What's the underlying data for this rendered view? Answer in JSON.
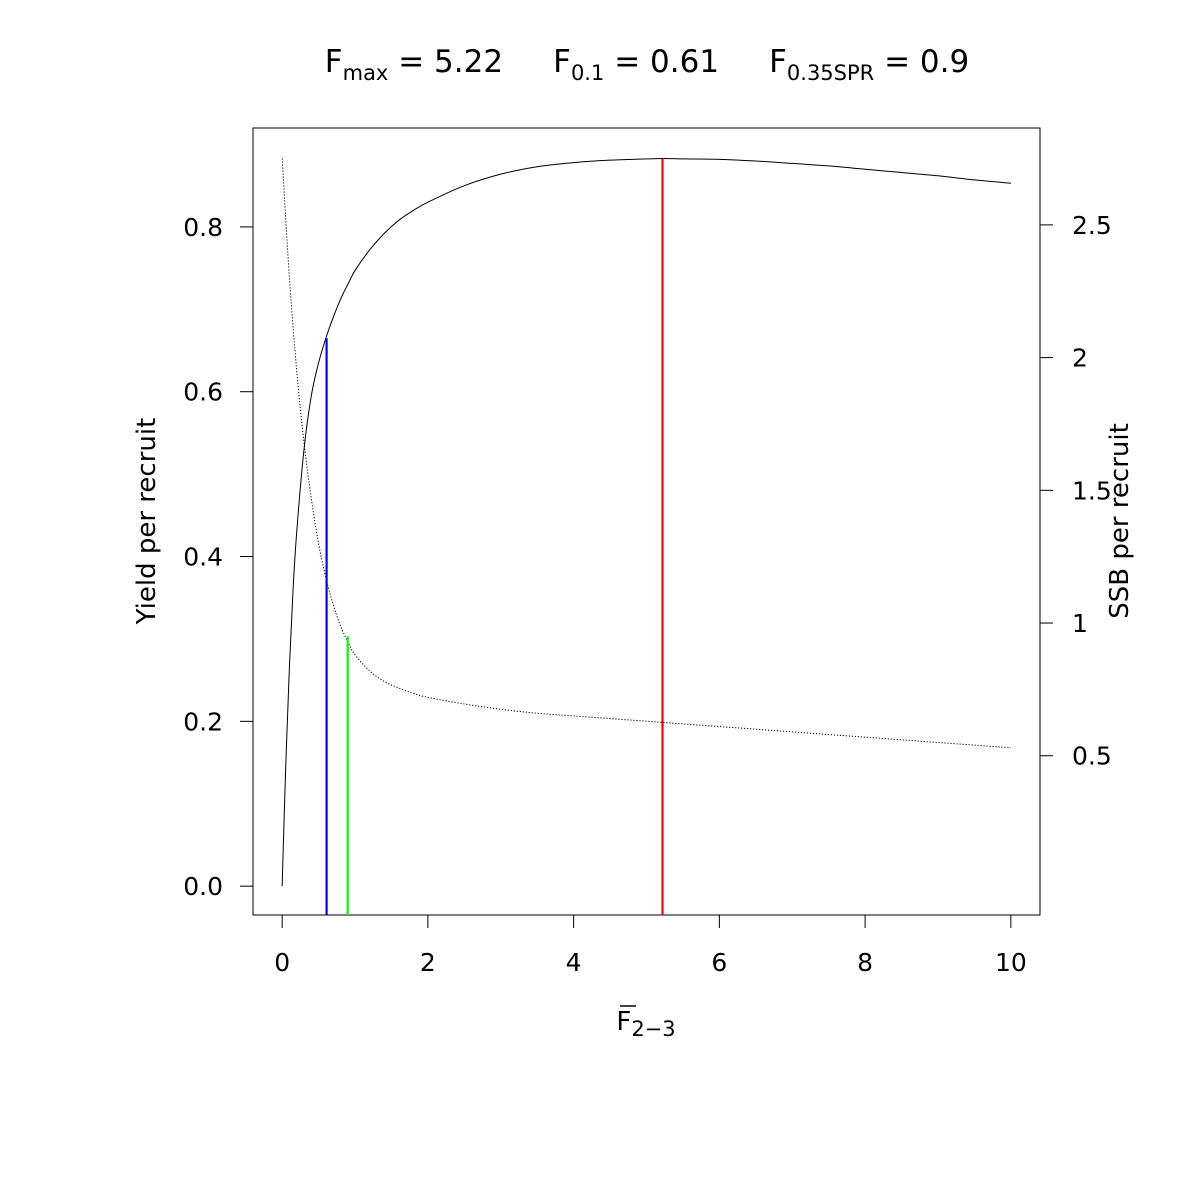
{
  "chart_data": {
    "type": "line",
    "title": {
      "fmax": {
        "symbol": "F",
        "subscript": "max",
        "value_text": " = 5.22"
      },
      "f01": {
        "symbol": "F",
        "subscript": "0.1",
        "value_text": " = 0.61"
      },
      "f035spr": {
        "symbol": "F",
        "subscript": "0.35SPR",
        "value_text": " = 0.9"
      }
    },
    "xlabel": {
      "symbol": "F",
      "subscript": "2−3"
    },
    "ylabel_left": "Yield per recruit",
    "ylabel_right": "SSB per recruit",
    "xlim": [
      -0.4,
      10.4
    ],
    "ylim_left": [
      -0.035,
      0.92
    ],
    "ylim_right": [
      -0.1,
      2.865
    ],
    "x_ticks": [
      0,
      2,
      4,
      6,
      8,
      10
    ],
    "x_tick_labels": [
      "0",
      "2",
      "4",
      "6",
      "8",
      "10"
    ],
    "y_left_ticks": [
      0.0,
      0.2,
      0.4,
      0.6,
      0.8
    ],
    "y_left_tick_labels": [
      "0.0",
      "0.2",
      "0.4",
      "0.6",
      "0.8"
    ],
    "y_right_ticks": [
      0.5,
      1.0,
      1.5,
      2.0,
      2.5
    ],
    "y_right_tick_labels": [
      "0.5",
      "1",
      "1.5",
      "2",
      "2.5"
    ],
    "grid": false,
    "series": [
      {
        "axis": "left",
        "style": "solid",
        "color": "#000000",
        "x": [
          0,
          0.05,
          0.1,
          0.15,
          0.2,
          0.3,
          0.4,
          0.5,
          0.6,
          0.7,
          0.8,
          0.9,
          1.0,
          1.2,
          1.4,
          1.6,
          1.8,
          2.0,
          2.5,
          3.0,
          3.5,
          4.0,
          4.5,
          5.0,
          5.22,
          5.5,
          6.0,
          6.5,
          7.0,
          7.5,
          8.0,
          8.5,
          9.0,
          9.5,
          10.0
        ],
        "y": [
          0.0,
          0.148,
          0.267,
          0.36,
          0.43,
          0.53,
          0.595,
          0.635,
          0.665,
          0.69,
          0.712,
          0.73,
          0.747,
          0.772,
          0.792,
          0.808,
          0.82,
          0.83,
          0.85,
          0.864,
          0.873,
          0.878,
          0.881,
          0.8825,
          0.883,
          0.8825,
          0.882,
          0.88,
          0.877,
          0.874,
          0.87,
          0.866,
          0.862,
          0.857,
          0.853
        ]
      },
      {
        "axis": "right",
        "style": "dotted",
        "color": "#000000",
        "x": [
          0,
          0.1,
          0.2,
          0.3,
          0.4,
          0.5,
          0.6,
          0.7,
          0.8,
          0.9,
          1.0,
          1.2,
          1.4,
          1.6,
          1.8,
          2.0,
          2.5,
          3.0,
          3.5,
          4.0,
          5.0,
          6.0,
          7.0,
          8.0,
          9.0,
          10.0
        ],
        "y": [
          2.75,
          2.3,
          1.95,
          1.68,
          1.47,
          1.3,
          1.17,
          1.07,
          0.99,
          0.93,
          0.88,
          0.82,
          0.78,
          0.755,
          0.735,
          0.72,
          0.695,
          0.675,
          0.66,
          0.65,
          0.63,
          0.61,
          0.59,
          0.57,
          0.55,
          0.53
        ]
      }
    ],
    "reference_lines": [
      {
        "name": "Fmax",
        "x": 5.22,
        "y_top": 0.883,
        "axis": "left",
        "color": "#ff0000"
      },
      {
        "name": "F0.1",
        "x": 0.61,
        "y_top": 0.665,
        "axis": "left",
        "color": "#0000ff"
      },
      {
        "name": "F0.35SPR",
        "x": 0.9,
        "y_top": 0.95,
        "axis": "right",
        "color": "#00ff00"
      }
    ]
  }
}
